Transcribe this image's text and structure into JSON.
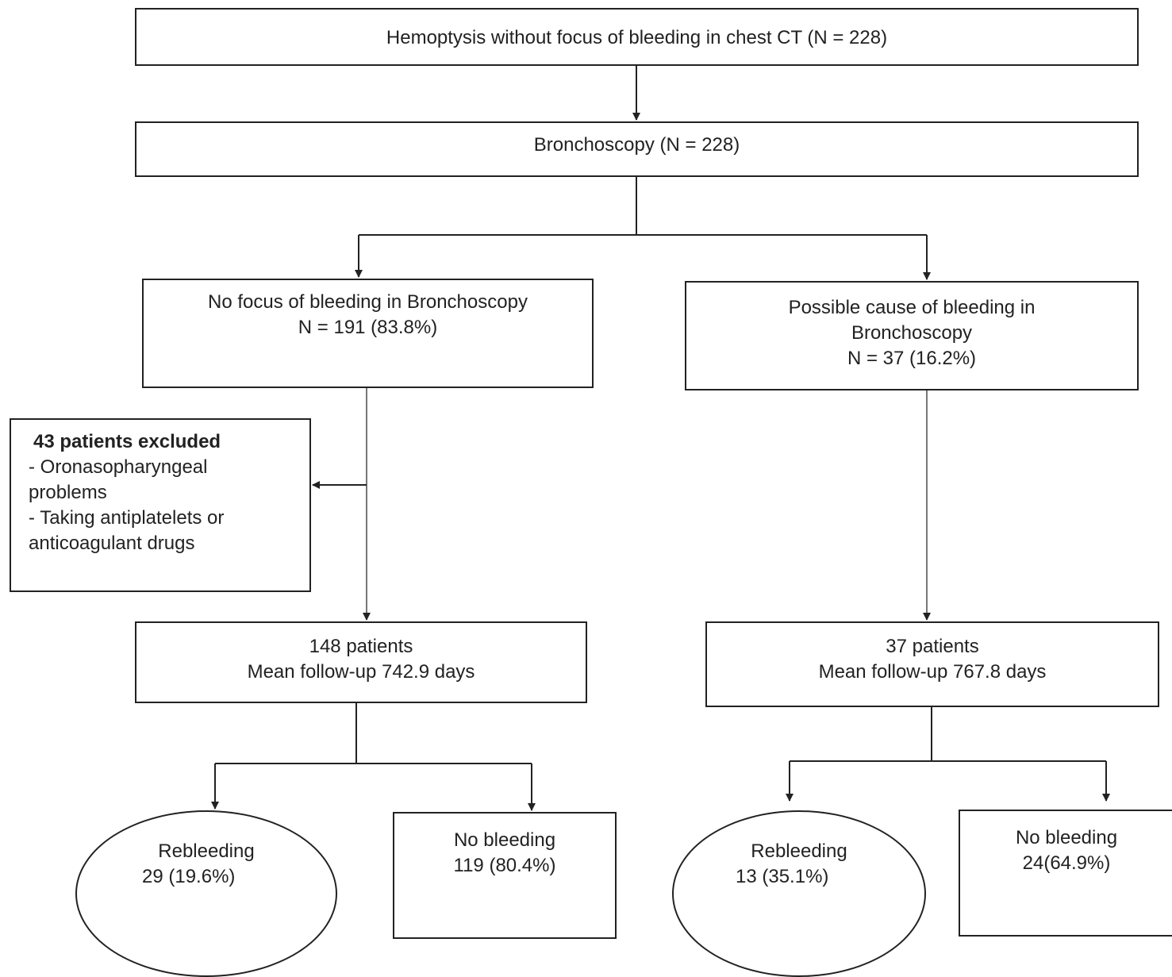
{
  "nodes": {
    "start": {
      "text": "Hemoptysis without focus of bleeding in chest CT (N = 228)"
    },
    "bronchoscopy": {
      "text": "Bronchoscopy (N = 228)"
    },
    "no_focus": {
      "line1": "No focus of bleeding in Bronchoscopy",
      "line2": "N = 191 (83.8%)"
    },
    "possible_cause": {
      "line1": "Possible cause of bleeding in",
      "line2": "Bronchoscopy",
      "line3": "N = 37 (16.2%)"
    },
    "excluded": {
      "title": "43 patients excluded",
      "line1": "- Oronasopharyngeal",
      "line2": "problems",
      "line3": "- Taking antiplatelets or",
      "line4": "anticoagulant drugs"
    },
    "left_followup": {
      "line1": "148 patients",
      "line2": "Mean follow-up 742.9 days"
    },
    "right_followup": {
      "line1": "37 patients",
      "line2": "Mean follow-up 767.8 days"
    },
    "left_rebleeding": {
      "line1": "Rebleeding",
      "line2": "29 (19.6%)"
    },
    "left_no_bleeding": {
      "line1": "No bleeding",
      "line2": "119 (80.4%)"
    },
    "right_rebleeding": {
      "line1": "Rebleeding",
      "line2": "13 (35.1%)"
    },
    "right_no_bleeding": {
      "line1": "No bleeding",
      "line2": "24(64.9%)"
    }
  }
}
